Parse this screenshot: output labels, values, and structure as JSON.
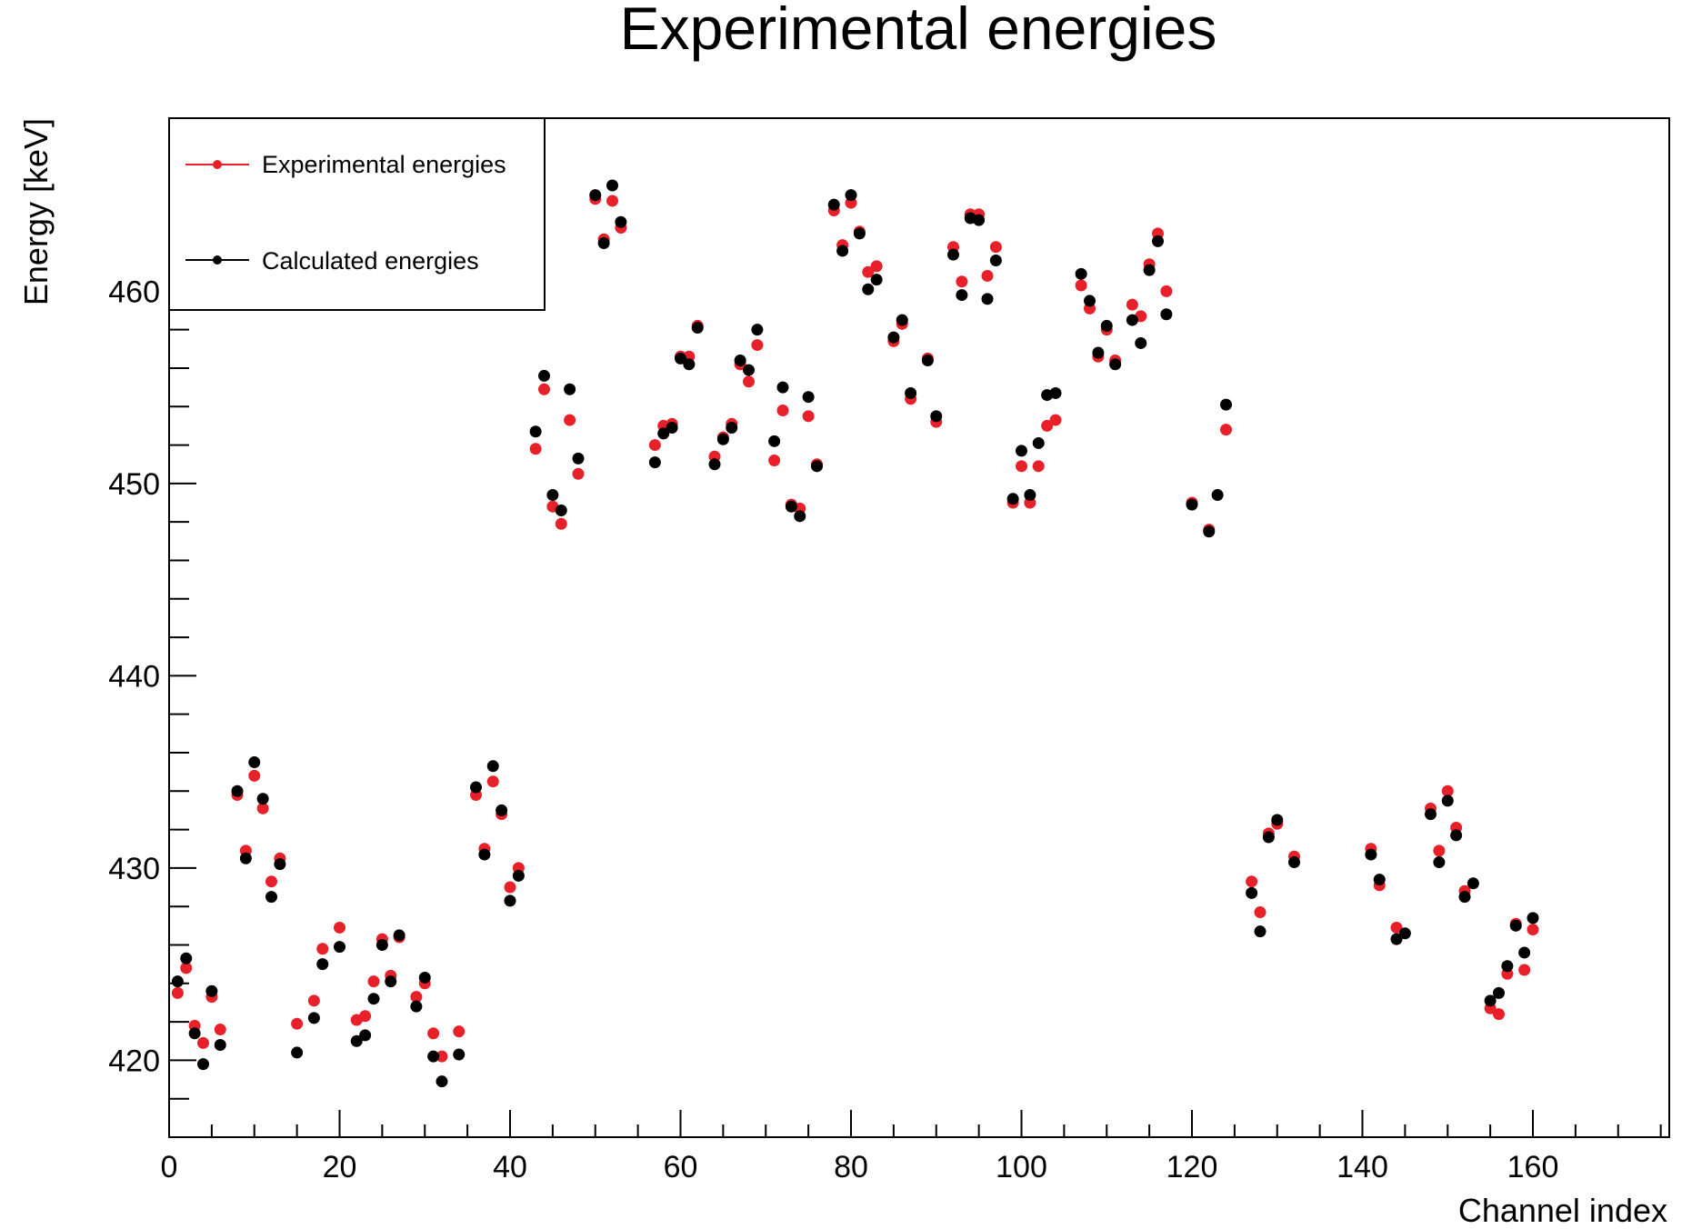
{
  "chart_data": {
    "type": "scatter",
    "title": "Experimental energies",
    "xlabel": "Channel index",
    "ylabel": "Energy [keV]",
    "xlim": [
      0,
      176
    ],
    "ylim": [
      416,
      469
    ],
    "xticks": [
      0,
      20,
      40,
      60,
      80,
      100,
      120,
      140,
      160
    ],
    "yticks": [
      420,
      430,
      440,
      450,
      460
    ],
    "grid": false,
    "legend_position": "top-left",
    "series": [
      {
        "name": "Experimental energies",
        "color": "#e8202a",
        "points": [
          [
            1,
            423.5
          ],
          [
            2,
            424.8
          ],
          [
            3,
            421.8
          ],
          [
            4,
            420.9
          ],
          [
            5,
            423.3
          ],
          [
            6,
            421.6
          ],
          [
            8,
            433.8
          ],
          [
            9,
            430.9
          ],
          [
            10,
            434.8
          ],
          [
            11,
            433.1
          ],
          [
            12,
            429.3
          ],
          [
            13,
            430.5
          ],
          [
            15,
            421.9
          ],
          [
            17,
            423.1
          ],
          [
            18,
            425.8
          ],
          [
            20,
            426.9
          ],
          [
            22,
            422.1
          ],
          [
            23,
            422.3
          ],
          [
            24,
            424.1
          ],
          [
            25,
            426.3
          ],
          [
            26,
            424.4
          ],
          [
            27,
            426.4
          ],
          [
            29,
            423.3
          ],
          [
            30,
            424.0
          ],
          [
            31,
            421.4
          ],
          [
            32,
            420.2
          ],
          [
            34,
            421.5
          ],
          [
            36,
            433.8
          ],
          [
            37,
            431.0
          ],
          [
            38,
            434.5
          ],
          [
            39,
            432.8
          ],
          [
            40,
            429.0
          ],
          [
            41,
            430.0
          ],
          [
            43,
            451.8
          ],
          [
            44,
            454.9
          ],
          [
            45,
            448.8
          ],
          [
            46,
            447.9
          ],
          [
            47,
            453.3
          ],
          [
            48,
            450.5
          ],
          [
            50,
            464.8
          ],
          [
            51,
            462.7
          ],
          [
            52,
            464.7
          ],
          [
            53,
            463.3
          ],
          [
            57,
            452.0
          ],
          [
            58,
            453.0
          ],
          [
            59,
            453.1
          ],
          [
            60,
            456.6
          ],
          [
            61,
            456.6
          ],
          [
            62,
            458.2
          ],
          [
            64,
            451.4
          ],
          [
            65,
            452.4
          ],
          [
            66,
            453.1
          ],
          [
            67,
            456.2
          ],
          [
            68,
            455.3
          ],
          [
            69,
            457.2
          ],
          [
            71,
            451.2
          ],
          [
            72,
            453.8
          ],
          [
            73,
            448.9
          ],
          [
            74,
            448.7
          ],
          [
            75,
            453.5
          ],
          [
            76,
            451.0
          ],
          [
            78,
            464.2
          ],
          [
            79,
            462.4
          ],
          [
            80,
            464.6
          ],
          [
            81,
            463.1
          ],
          [
            82,
            461.0
          ],
          [
            83,
            461.3
          ],
          [
            85,
            457.4
          ],
          [
            86,
            458.3
          ],
          [
            87,
            454.4
          ],
          [
            89,
            456.5
          ],
          [
            90,
            453.2
          ],
          [
            92,
            462.3
          ],
          [
            93,
            460.5
          ],
          [
            94,
            464.0
          ],
          [
            95,
            464.0
          ],
          [
            96,
            460.8
          ],
          [
            97,
            462.3
          ],
          [
            99,
            449.0
          ],
          [
            100,
            450.9
          ],
          [
            101,
            449.0
          ],
          [
            102,
            450.9
          ],
          [
            103,
            453.0
          ],
          [
            104,
            453.3
          ],
          [
            107,
            460.3
          ],
          [
            108,
            459.1
          ],
          [
            109,
            456.6
          ],
          [
            110,
            458.0
          ],
          [
            111,
            456.4
          ],
          [
            113,
            459.3
          ],
          [
            114,
            458.7
          ],
          [
            115,
            461.4
          ],
          [
            116,
            463.0
          ],
          [
            117,
            460.0
          ],
          [
            120,
            449.0
          ],
          [
            122,
            447.6
          ],
          [
            124,
            452.8
          ],
          [
            127,
            429.3
          ],
          [
            128,
            427.7
          ],
          [
            129,
            431.8
          ],
          [
            130,
            432.3
          ],
          [
            132,
            430.6
          ],
          [
            141,
            431.0
          ],
          [
            142,
            429.1
          ],
          [
            144,
            426.9
          ],
          [
            148,
            433.1
          ],
          [
            149,
            430.9
          ],
          [
            150,
            434.0
          ],
          [
            151,
            432.1
          ],
          [
            152,
            428.8
          ],
          [
            155,
            422.7
          ],
          [
            156,
            422.4
          ],
          [
            157,
            424.5
          ],
          [
            158,
            427.1
          ],
          [
            159,
            424.7
          ],
          [
            160,
            426.8
          ]
        ]
      },
      {
        "name": "Calculated energies",
        "color": "#000000",
        "points": [
          [
            1,
            424.1
          ],
          [
            2,
            425.3
          ],
          [
            3,
            421.4
          ],
          [
            4,
            419.8
          ],
          [
            5,
            423.6
          ],
          [
            6,
            420.8
          ],
          [
            8,
            434.0
          ],
          [
            9,
            430.5
          ],
          [
            10,
            435.5
          ],
          [
            11,
            433.6
          ],
          [
            12,
            428.5
          ],
          [
            13,
            430.2
          ],
          [
            15,
            420.4
          ],
          [
            17,
            422.2
          ],
          [
            18,
            425.0
          ],
          [
            20,
            425.9
          ],
          [
            22,
            421.0
          ],
          [
            23,
            421.3
          ],
          [
            24,
            423.2
          ],
          [
            25,
            426.0
          ],
          [
            26,
            424.1
          ],
          [
            27,
            426.5
          ],
          [
            29,
            422.8
          ],
          [
            30,
            424.3
          ],
          [
            31,
            420.2
          ],
          [
            32,
            418.9
          ],
          [
            34,
            420.3
          ],
          [
            36,
            434.2
          ],
          [
            37,
            430.7
          ],
          [
            38,
            435.3
          ],
          [
            39,
            433.0
          ],
          [
            40,
            428.3
          ],
          [
            41,
            429.6
          ],
          [
            43,
            452.7
          ],
          [
            44,
            455.6
          ],
          [
            45,
            449.4
          ],
          [
            46,
            448.6
          ],
          [
            47,
            454.9
          ],
          [
            48,
            451.3
          ],
          [
            50,
            465.0
          ],
          [
            51,
            462.5
          ],
          [
            52,
            465.5
          ],
          [
            53,
            463.6
          ],
          [
            57,
            451.1
          ],
          [
            58,
            452.6
          ],
          [
            59,
            452.9
          ],
          [
            60,
            456.5
          ],
          [
            61,
            456.2
          ],
          [
            62,
            458.1
          ],
          [
            64,
            451.0
          ],
          [
            65,
            452.3
          ],
          [
            66,
            452.9
          ],
          [
            67,
            456.4
          ],
          [
            68,
            455.9
          ],
          [
            69,
            458.0
          ],
          [
            71,
            452.2
          ],
          [
            72,
            455.0
          ],
          [
            73,
            448.8
          ],
          [
            74,
            448.3
          ],
          [
            75,
            454.5
          ],
          [
            76,
            450.9
          ],
          [
            78,
            464.5
          ],
          [
            79,
            462.1
          ],
          [
            80,
            465.0
          ],
          [
            81,
            463.0
          ],
          [
            82,
            460.1
          ],
          [
            83,
            460.6
          ],
          [
            85,
            457.6
          ],
          [
            86,
            458.5
          ],
          [
            87,
            454.7
          ],
          [
            89,
            456.4
          ],
          [
            90,
            453.5
          ],
          [
            92,
            461.9
          ],
          [
            93,
            459.8
          ],
          [
            94,
            463.8
          ],
          [
            95,
            463.7
          ],
          [
            96,
            459.6
          ],
          [
            97,
            461.6
          ],
          [
            99,
            449.2
          ],
          [
            100,
            451.7
          ],
          [
            101,
            449.4
          ],
          [
            102,
            452.1
          ],
          [
            103,
            454.6
          ],
          [
            104,
            454.7
          ],
          [
            107,
            460.9
          ],
          [
            108,
            459.5
          ],
          [
            109,
            456.8
          ],
          [
            110,
            458.2
          ],
          [
            111,
            456.2
          ],
          [
            113,
            458.5
          ],
          [
            114,
            457.3
          ],
          [
            115,
            461.1
          ],
          [
            116,
            462.6
          ],
          [
            117,
            458.8
          ],
          [
            120,
            448.9
          ],
          [
            122,
            447.5
          ],
          [
            123,
            449.4
          ],
          [
            124,
            454.1
          ],
          [
            127,
            428.7
          ],
          [
            128,
            426.7
          ],
          [
            129,
            431.6
          ],
          [
            130,
            432.5
          ],
          [
            132,
            430.3
          ],
          [
            141,
            430.7
          ],
          [
            142,
            429.4
          ],
          [
            144,
            426.3
          ],
          [
            145,
            426.6
          ],
          [
            148,
            432.8
          ],
          [
            149,
            430.3
          ],
          [
            150,
            433.5
          ],
          [
            151,
            431.7
          ],
          [
            152,
            428.5
          ],
          [
            153,
            429.2
          ],
          [
            155,
            423.1
          ],
          [
            156,
            423.5
          ],
          [
            157,
            424.9
          ],
          [
            158,
            427.0
          ],
          [
            159,
            425.6
          ],
          [
            160,
            427.4
          ]
        ]
      }
    ]
  }
}
